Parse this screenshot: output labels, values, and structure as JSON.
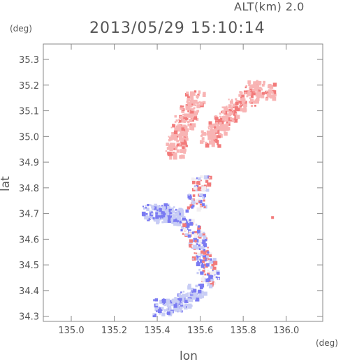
{
  "header": {
    "altitude_label": "ALT(km) 2.0",
    "timestamp": "2013/05/29 15:10:14"
  },
  "axes": {
    "x_unit": "(deg)",
    "y_unit": "(deg)",
    "x_label": "lon",
    "y_label": "lat",
    "x_ticks": [
      "135.0",
      "135.2",
      "135.4",
      "135.6",
      "135.8",
      "136.0"
    ],
    "y_ticks": [
      "34.3",
      "34.4",
      "34.5",
      "34.6",
      "34.7",
      "34.8",
      "34.9",
      "35.0",
      "35.1",
      "35.2",
      "35.3"
    ]
  },
  "chart_data": {
    "type": "scatter",
    "xlim": [
      134.87,
      136.17
    ],
    "ylim": [
      34.28,
      35.36
    ],
    "grid": false,
    "colors": {
      "positive": "#f27a7a",
      "positive_light": "#f8b4b4",
      "negative": "#7a7af2",
      "negative_light": "#c8cdf5",
      "neutral": "#f2eef2"
    },
    "regions": [
      {
        "name": "north-east-band",
        "color": "positive_light",
        "points": [
          [
            135.85,
            35.19
          ],
          [
            135.9,
            35.18
          ],
          [
            135.82,
            35.15
          ],
          [
            135.77,
            35.12
          ],
          [
            135.73,
            35.09
          ],
          [
            135.7,
            35.06
          ],
          [
            135.67,
            35.03
          ],
          [
            135.64,
            35.0
          ]
        ]
      },
      {
        "name": "north-west-band",
        "color": "positive_light",
        "points": [
          [
            135.57,
            35.15
          ],
          [
            135.54,
            35.1
          ],
          [
            135.52,
            35.06
          ],
          [
            135.5,
            35.02
          ],
          [
            135.49,
            34.98
          ],
          [
            135.48,
            34.95
          ]
        ]
      },
      {
        "name": "west-blue-cluster",
        "color": "negative",
        "points": [
          [
            135.37,
            34.71
          ],
          [
            135.4,
            34.71
          ],
          [
            135.43,
            34.7
          ],
          [
            135.46,
            34.7
          ],
          [
            135.49,
            34.69
          ]
        ]
      },
      {
        "name": "central-mixed",
        "color": "mixed",
        "points": [
          [
            135.55,
            34.65
          ],
          [
            135.58,
            34.6
          ],
          [
            135.6,
            34.55
          ],
          [
            135.62,
            34.5
          ],
          [
            135.64,
            34.45
          ],
          [
            135.58,
            34.75
          ],
          [
            135.6,
            34.82
          ]
        ]
      },
      {
        "name": "south-tail",
        "color": "negative",
        "points": [
          [
            135.58,
            34.4
          ],
          [
            135.52,
            34.37
          ],
          [
            135.47,
            34.35
          ],
          [
            135.42,
            34.34
          ]
        ]
      },
      {
        "name": "isolated-cell",
        "color": "positive",
        "points": [
          [
            135.93,
            34.69
          ]
        ]
      }
    ]
  }
}
